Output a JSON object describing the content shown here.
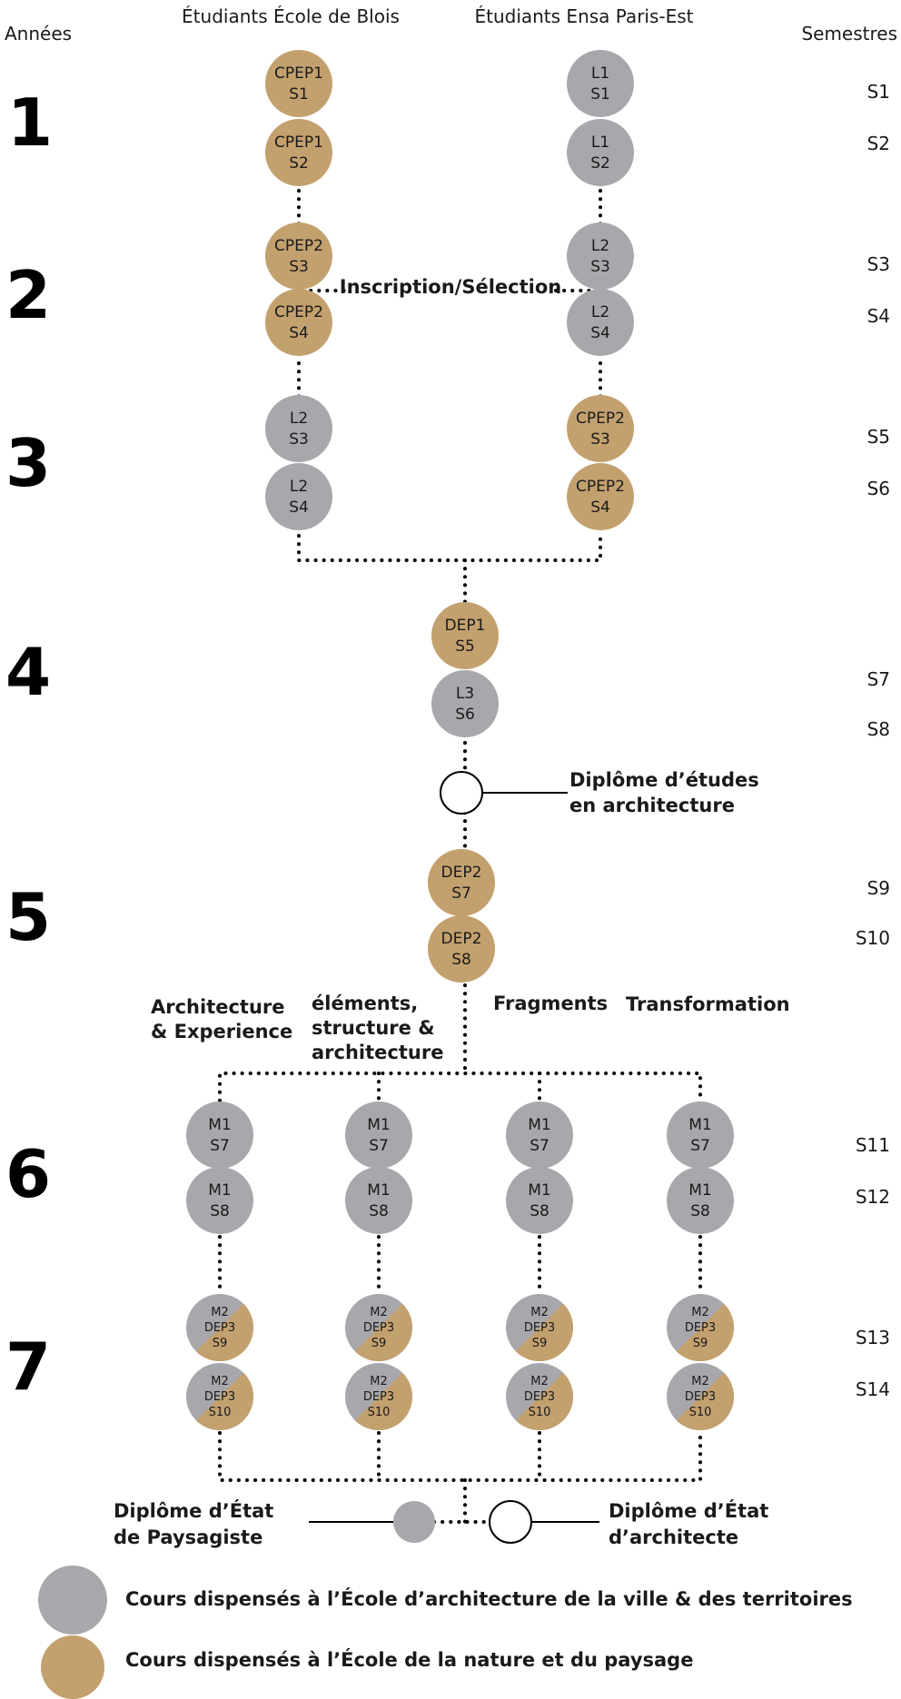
{
  "headers": {
    "years": "Années",
    "blois": "Étudiants École de Blois",
    "paris": "Étudiants Ensa Paris-Est",
    "semesters": "Semestres"
  },
  "colors": {
    "grey": "#a8a7ab",
    "tan": "#c3a16f",
    "line": "#000000"
  },
  "years": [
    "1",
    "2",
    "3",
    "4",
    "5",
    "6",
    "7"
  ],
  "semesters": [
    "S1",
    "S2",
    "S3",
    "S4",
    "S5",
    "S6",
    "S7",
    "S8",
    "S9",
    "S10",
    "S11",
    "S12",
    "S13",
    "S14"
  ],
  "nodes": {
    "blois": [
      {
        "l1": "CPEP1",
        "l2": "S1",
        "color": "tan"
      },
      {
        "l1": "CPEP1",
        "l2": "S2",
        "color": "tan"
      },
      {
        "l1": "CPEP2",
        "l2": "S3",
        "color": "tan"
      },
      {
        "l1": "CPEP2",
        "l2": "S4",
        "color": "tan"
      },
      {
        "l1": "L2",
        "l2": "S3",
        "color": "grey"
      },
      {
        "l1": "L2",
        "l2": "S4",
        "color": "grey"
      }
    ],
    "paris": [
      {
        "l1": "L1",
        "l2": "S1",
        "color": "grey"
      },
      {
        "l1": "L1",
        "l2": "S2",
        "color": "grey"
      },
      {
        "l1": "L2",
        "l2": "S3",
        "color": "grey"
      },
      {
        "l1": "L2",
        "l2": "S4",
        "color": "grey"
      },
      {
        "l1": "CPEP2",
        "l2": "S3",
        "color": "tan"
      },
      {
        "l1": "CPEP2",
        "l2": "S4",
        "color": "tan"
      }
    ],
    "center": [
      {
        "l1": "DEP1",
        "l2": "S5",
        "color": "tan"
      },
      {
        "l1": "L3",
        "l2": "S6",
        "color": "grey"
      },
      {
        "l1": "DEP2",
        "l2": "S7",
        "color": "tan"
      },
      {
        "l1": "DEP2",
        "l2": "S8",
        "color": "tan"
      }
    ],
    "masters_m1": [
      {
        "l1": "M1",
        "l2": "S7"
      },
      {
        "l1": "M1",
        "l2": "S8"
      }
    ],
    "masters_m2": [
      {
        "l1": "M2",
        "l2": "DEP3",
        "l3": "S9"
      },
      {
        "l1": "M2",
        "l2": "DEP3",
        "l3": "S10"
      }
    ]
  },
  "labels": {
    "inscription": "Inscription/Sélection",
    "dea_line1": "Diplôme d’études",
    "dea_line2": "en architecture",
    "dep_line1": "Diplôme d’État",
    "dep_line2": "de Paysagiste",
    "dea2_line1": "Diplôme d’État",
    "dea2_line2": "d’architecte"
  },
  "tracks": [
    {
      "lines": [
        "Architecture",
        "& Experience"
      ]
    },
    {
      "lines": [
        "éléments,",
        "structure &",
        "architecture"
      ]
    },
    {
      "lines": [
        "Fragments"
      ]
    },
    {
      "lines": [
        "Transformation"
      ]
    }
  ],
  "legend": [
    {
      "color": "grey",
      "text": "Cours dispensés à l’École d’architecture de la ville & des territoires"
    },
    {
      "color": "tan",
      "text": "Cours dispensés à l’École de la nature et du paysage"
    }
  ]
}
